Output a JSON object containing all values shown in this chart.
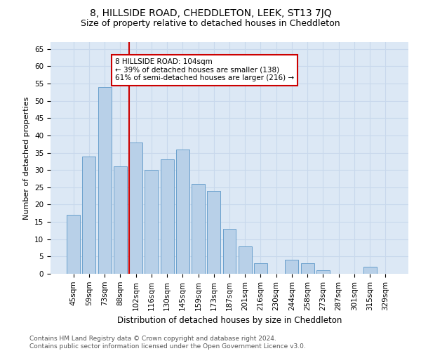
{
  "title": "8, HILLSIDE ROAD, CHEDDLETON, LEEK, ST13 7JQ",
  "subtitle": "Size of property relative to detached houses in Cheddleton",
  "xlabel": "Distribution of detached houses by size in Cheddleton",
  "ylabel": "Number of detached properties",
  "categories": [
    "45sqm",
    "59sqm",
    "73sqm",
    "88sqm",
    "102sqm",
    "116sqm",
    "130sqm",
    "145sqm",
    "159sqm",
    "173sqm",
    "187sqm",
    "201sqm",
    "216sqm",
    "230sqm",
    "244sqm",
    "258sqm",
    "273sqm",
    "287sqm",
    "301sqm",
    "315sqm",
    "329sqm"
  ],
  "values": [
    17,
    34,
    54,
    31,
    38,
    30,
    33,
    36,
    26,
    24,
    13,
    8,
    3,
    0,
    4,
    3,
    1,
    0,
    0,
    2,
    0
  ],
  "bar_color": "#b8d0e8",
  "bar_edge_color": "#6aa0cc",
  "grid_color": "#c8d8ec",
  "background_color": "#dce8f5",
  "property_line_color": "#cc0000",
  "annotation_text": "8 HILLSIDE ROAD: 104sqm\n← 39% of detached houses are smaller (138)\n61% of semi-detached houses are larger (216) →",
  "annotation_box_color": "#ffffff",
  "annotation_box_edge": "#cc0000",
  "footer_line1": "Contains HM Land Registry data © Crown copyright and database right 2024.",
  "footer_line2": "Contains public sector information licensed under the Open Government Licence v3.0.",
  "ylim": [
    0,
    67
  ],
  "yticks": [
    0,
    5,
    10,
    15,
    20,
    25,
    30,
    35,
    40,
    45,
    50,
    55,
    60,
    65
  ],
  "title_fontsize": 10,
  "subtitle_fontsize": 9,
  "ylabel_fontsize": 8,
  "xlabel_fontsize": 8.5,
  "tick_fontsize": 7.5,
  "footer_fontsize": 6.5,
  "line_bar_index": 4,
  "figwidth": 6.0,
  "figheight": 5.0,
  "dpi": 100
}
